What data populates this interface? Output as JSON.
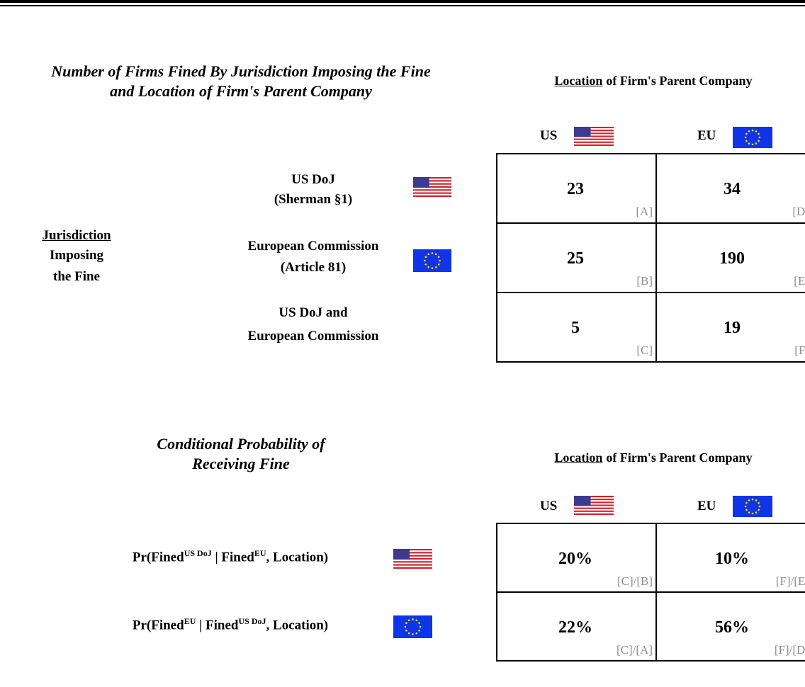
{
  "table1": {
    "title": [
      "Number of Firms Fined By Jurisdiction Imposing the Fine",
      "and Location of Firm's Parent Company"
    ],
    "header": {
      "underlined": "Location",
      "rest": "of Firm's Parent Company"
    },
    "columns": [
      "US",
      "EU"
    ],
    "side_label": [
      "Jurisdiction",
      "Imposing",
      "the Fine"
    ],
    "rows": [
      {
        "label": [
          "US DoJ",
          "(Sherman §1)"
        ],
        "cells": [
          {
            "value": "23",
            "code": "[A]"
          },
          {
            "value": "34",
            "code": "[D]"
          }
        ]
      },
      {
        "label": [
          "European Commission",
          "(Article 81)"
        ],
        "cells": [
          {
            "value": "25",
            "code": "[B]"
          },
          {
            "value": "190",
            "code": "[E]"
          }
        ]
      },
      {
        "label": [
          "US DoJ and",
          "European Commission"
        ],
        "cells": [
          {
            "value": "5",
            "code": "[C]"
          },
          {
            "value": "19",
            "code": "[F]"
          }
        ]
      }
    ]
  },
  "table2": {
    "title": [
      "Conditional Probability of",
      "Receiving Fine"
    ],
    "header": {
      "underlined": "Location",
      "rest": "of Firm's Parent Company"
    },
    "columns": [
      "US",
      "EU"
    ],
    "rows": [
      {
        "label": [
          "Pr(Fined",
          "US DoJ",
          " | Fined",
          "EU",
          ", Location)"
        ],
        "cells": [
          {
            "value": "20%",
            "code": "[C]/[B]"
          },
          {
            "value": "10%",
            "code": "[F]/[E]"
          }
        ]
      },
      {
        "label": [
          "Pr(Fined",
          "EU",
          " | Fined",
          "US DoJ",
          ", Location)"
        ],
        "cells": [
          {
            "value": "22%",
            "code": "[C]/[A]"
          },
          {
            "value": "56%",
            "code": "[F]/[D]"
          }
        ]
      }
    ]
  }
}
